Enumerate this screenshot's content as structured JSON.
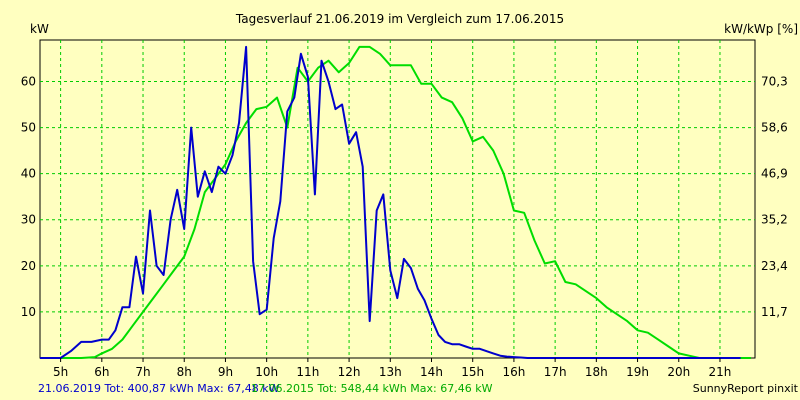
{
  "chart_data": {
    "type": "line",
    "title": "Tagesverlauf 21.06.2019 im Vergleich zum 17.06.2015",
    "ylabel_left": "kW",
    "ylabel_right": "kW/kWp [%]",
    "ylim": [
      0,
      69
    ],
    "grid": true,
    "x_tick_labels": [
      "5h",
      "6h",
      "7h",
      "8h",
      "9h",
      "10h",
      "11h",
      "12h",
      "13h",
      "14h",
      "15h",
      "16h",
      "17h",
      "18h",
      "19h",
      "20h",
      "21h"
    ],
    "y_left_ticks": [
      10,
      20,
      30,
      40,
      50,
      60
    ],
    "y_right_ticks": [
      "11,7",
      "23,4",
      "35,2",
      "46,9",
      "58,6",
      "70,3"
    ],
    "series": [
      {
        "name": "21.06.2019",
        "color": "#0000cc",
        "x": [
          4.5,
          5.0,
          5.25,
          5.5,
          5.75,
          6.0,
          6.17,
          6.33,
          6.5,
          6.67,
          6.83,
          7.0,
          7.17,
          7.33,
          7.5,
          7.67,
          7.83,
          8.0,
          8.17,
          8.33,
          8.5,
          8.67,
          8.83,
          9.0,
          9.17,
          9.33,
          9.5,
          9.67,
          9.83,
          10.0,
          10.17,
          10.33,
          10.5,
          10.67,
          10.83,
          11.0,
          11.17,
          11.33,
          11.5,
          11.67,
          11.83,
          12.0,
          12.17,
          12.33,
          12.5,
          12.67,
          12.83,
          13.0,
          13.17,
          13.33,
          13.5,
          13.67,
          13.83,
          14.0,
          14.17,
          14.33,
          14.5,
          14.67,
          14.83,
          15.0,
          15.17,
          15.33,
          15.5,
          15.67,
          15.83,
          16.0,
          16.17,
          16.33,
          16.5,
          16.67,
          16.83,
          17.0,
          17.17,
          17.33,
          17.5,
          17.67,
          17.83,
          18.0,
          18.25,
          18.5,
          18.75,
          19.0,
          19.25,
          19.5,
          19.75,
          20.0,
          20.25,
          20.5,
          20.75,
          21.0,
          21.25,
          21.5
        ],
        "values": [
          0,
          0,
          1.5,
          3.5,
          3.5,
          4,
          4,
          6,
          11,
          11,
          22,
          14,
          32,
          20,
          18,
          30,
          36.5,
          28,
          50,
          35,
          40.5,
          36,
          41.5,
          40,
          44,
          51,
          67.5,
          21,
          9.5,
          10.5,
          26,
          34,
          53.5,
          56.5,
          66,
          61,
          35.5,
          64.5,
          60,
          54,
          55,
          46.5,
          49,
          41.5,
          8,
          32,
          35.5,
          19,
          13,
          21.5,
          19.5,
          15,
          12.5,
          8.5,
          5,
          3.5,
          3,
          3,
          2.5,
          2,
          2,
          1.5,
          1,
          0.5,
          0.3,
          0.2,
          0.1,
          0,
          0,
          0,
          0,
          0,
          0,
          0,
          0,
          0,
          0,
          0,
          0,
          0,
          0,
          0,
          0,
          0,
          0,
          0,
          0,
          0,
          0,
          0,
          0,
          0
        ]
      },
      {
        "name": "17.06.2015",
        "color": "#00dd00",
        "x": [
          4.5,
          5.0,
          5.5,
          5.83,
          6.0,
          6.25,
          6.5,
          6.75,
          7.0,
          7.25,
          7.5,
          7.75,
          8.0,
          8.25,
          8.5,
          8.75,
          9.0,
          9.25,
          9.5,
          9.75,
          10.0,
          10.25,
          10.5,
          10.75,
          11.0,
          11.25,
          11.5,
          11.75,
          12.0,
          12.25,
          12.5,
          12.75,
          13.0,
          13.25,
          13.5,
          13.75,
          14.0,
          14.25,
          14.5,
          14.75,
          15.0,
          15.25,
          15.5,
          15.75,
          16.0,
          16.25,
          16.5,
          16.75,
          17.0,
          17.25,
          17.5,
          17.75,
          18.0,
          18.25,
          18.5,
          18.75,
          19.0,
          19.25,
          19.5,
          19.75,
          20.0,
          20.25,
          20.5,
          20.75,
          21.0,
          21.25,
          21.5,
          21.75
        ],
        "values": [
          0,
          0,
          0,
          0.2,
          1,
          2,
          4,
          7,
          10,
          13,
          16,
          19,
          22,
          28,
          36,
          39,
          42,
          47,
          51,
          54,
          54.5,
          56.5,
          50,
          63,
          60,
          63,
          64.5,
          62,
          64,
          67.5,
          67.5,
          66,
          63.5,
          63.5,
          63.5,
          59.5,
          59.5,
          56.5,
          55.5,
          52,
          47,
          48,
          45,
          40,
          32,
          31.5,
          25.5,
          20.5,
          21,
          16.5,
          16,
          14.5,
          13,
          11,
          9.5,
          8,
          6,
          5.5,
          4,
          2.5,
          1,
          0.5,
          0,
          0,
          0,
          0,
          0,
          0
        ],
        "total_kwh": "548,44",
        "max_kw": "67,46"
      }
    ]
  },
  "footer": {
    "series1_label": "21.06.2019 Tot: 400,87 kWh Max: 67,48 kW",
    "series2_label": "17.06.2015 Tot: 548,44 kWh Max: 67,46 kW",
    "credit": "SunnyReport pinxit"
  }
}
